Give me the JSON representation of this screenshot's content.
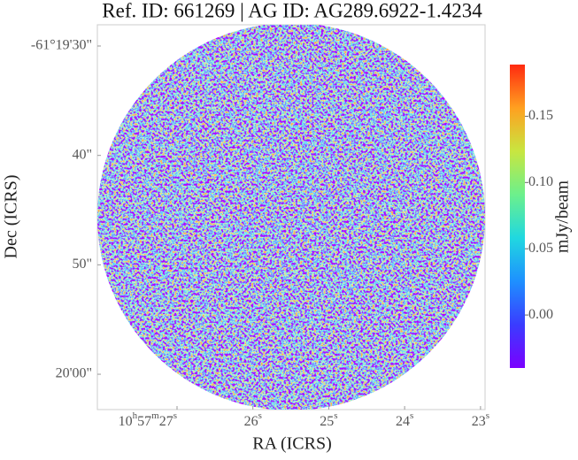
{
  "chart_data": {
    "type": "image",
    "title": "Ref. ID: 661269 | AG ID: AG289.6922-1.4234",
    "x_label": "RA (ICRS)",
    "y_label": "Dec (ICRS)",
    "colorbar_label": "mJy/beam",
    "xlim": [
      28.05,
      22.94
    ],
    "xticks": [
      {
        "value": 27,
        "label": "10h57m27s"
      },
      {
        "value": 26,
        "label": "26s"
      },
      {
        "value": 25,
        "label": "25s"
      },
      {
        "value": 24,
        "label": "24s"
      },
      {
        "value": 23,
        "label": "23s"
      }
    ],
    "ylim": [
      -63.23,
      -28.06
    ],
    "yticks": [
      {
        "value": -30,
        "label": "-61°19'30\""
      },
      {
        "value": -40,
        "label": "40\""
      },
      {
        "value": -50,
        "label": "50\""
      },
      {
        "value": -60,
        "label": "20'00\""
      }
    ],
    "clim": [
      -0.04,
      0.189
    ],
    "cticks": [
      {
        "value": 0,
        "label": "0.00"
      },
      0.05,
      {
        "value": 0.1,
        "label": "0.10"
      },
      0.15
    ],
    "colormap": [
      "#7b00ff",
      "#3a3cff",
      "#1e90ff",
      "#20d8e0",
      "#6cf08c",
      "#c8e640",
      "#ffa020",
      "#ff2a10"
    ]
  }
}
